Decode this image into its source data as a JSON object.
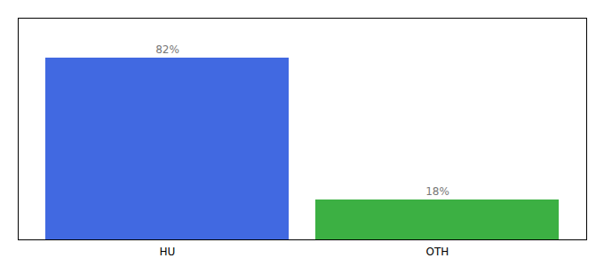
{
  "chart_data": {
    "type": "bar",
    "categories": [
      "HU",
      "OTH"
    ],
    "values": [
      82,
      18
    ],
    "value_labels": [
      "82%",
      "18%"
    ],
    "colors": [
      "#4169e1",
      "#3cb043"
    ],
    "ylim": [
      0,
      100
    ],
    "data_labels": true,
    "tick_labels": "x",
    "grid": false
  }
}
